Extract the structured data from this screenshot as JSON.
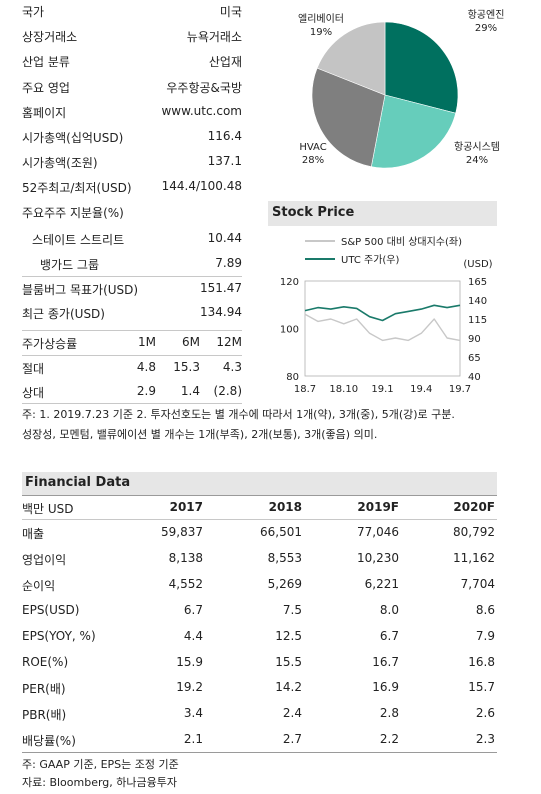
{
  "profile": {
    "rows": [
      {
        "label": "국가",
        "value": "미국"
      },
      {
        "label": "상장거래소",
        "value": "뉴욕거래소"
      },
      {
        "label": "산업 분류",
        "value": "산업재"
      },
      {
        "label": "주요 영업",
        "value": "우주항공&국방"
      },
      {
        "label": "홈페이지",
        "value": "www.utc.com"
      },
      {
        "label": "시가총액(십억USD)",
        "value": "116.4"
      },
      {
        "label": "시가총액(조원)",
        "value": "137.1"
      },
      {
        "label": "52주최고/최저(USD)",
        "value": "144.4/100.48"
      }
    ],
    "holders_title": "주요주주 지분율(%)",
    "holders": [
      {
        "label": "스테이트 스트리트",
        "value": "10.44"
      },
      {
        "label": "뱅가드 그룹",
        "value": "7.89"
      }
    ],
    "target_label": "블룸버그 목표가(USD)",
    "target_value": "151.47",
    "close_label": "최근 종가(USD)",
    "close_value": "134.94"
  },
  "returns": {
    "title": "주가상승률",
    "periods": [
      "1M",
      "6M",
      "12M"
    ],
    "rows": [
      {
        "label": "절대",
        "values": [
          "4.8",
          "15.3",
          "4.3"
        ]
      },
      {
        "label": "상대",
        "values": [
          "2.9",
          "1.4",
          "(2.8)"
        ]
      }
    ]
  },
  "notes_top": [
    "주: 1. 2019.7.23 기준 2. 투자선호도는 별 개수에 따라서 1개(약), 3개(중), 5개(강)로 구분.",
    "성장성, 모멘텀, 밸류에이션 별 개수는 1개(부족), 2개(보통), 3개(좋음) 의미."
  ],
  "pie": {
    "chart_data": {
      "type": "pie",
      "labels": [
        "항공엔진",
        "항공시스템",
        "HVAC",
        "엘리베이터"
      ],
      "values": [
        29,
        24,
        28,
        19
      ],
      "display": [
        "29%",
        "24%",
        "28%",
        "19%"
      ],
      "colors": [
        "#00705f",
        "#66cdbb",
        "#7f7f7f",
        "#c4c4c4"
      ]
    }
  },
  "stock": {
    "title": "Stock Price",
    "legend": [
      {
        "name": "S&P 500 대비 상대지수(좌)",
        "color": "#c8c8c8"
      },
      {
        "name": "UTC 주가(우)",
        "color": "#1a7a6a"
      }
    ],
    "right_unit": "(USD)",
    "left_ticks": [
      "120",
      "100",
      "80"
    ],
    "right_ticks": [
      "165",
      "140",
      "115",
      "90",
      "65",
      "40"
    ],
    "x_ticks": [
      "18.7",
      "18.10",
      "19.1",
      "19.4",
      "19.7"
    ],
    "chart_data": {
      "type": "line",
      "x": [
        "18.7",
        "18.8",
        "18.9",
        "18.10",
        "18.11",
        "18.12",
        "19.1",
        "19.2",
        "19.3",
        "19.4",
        "19.5",
        "19.6",
        "19.7"
      ],
      "series": [
        {
          "name": "S&P 500 대비 상대지수(좌)",
          "axis": "left",
          "values": [
            106,
            103,
            104,
            102,
            104,
            98,
            95,
            96,
            95,
            98,
            104,
            96,
            95
          ]
        },
        {
          "name": "UTC 주가(우)",
          "axis": "right",
          "values": [
            126,
            130,
            128,
            131,
            129,
            118,
            113,
            122,
            125,
            128,
            133,
            130,
            133
          ]
        }
      ],
      "ylim_left": [
        80,
        120
      ],
      "ylim_right": [
        40,
        165
      ]
    }
  },
  "financial": {
    "title": "Financial Data",
    "unit_label": "백만 USD",
    "years": [
      "2017",
      "2018",
      "2019F",
      "2020F"
    ],
    "rows": [
      {
        "label": "매출",
        "values": [
          "59,837",
          "66,501",
          "77,046",
          "80,792"
        ]
      },
      {
        "label": "영업이익",
        "values": [
          "8,138",
          "8,553",
          "10,230",
          "11,162"
        ]
      },
      {
        "label": "순이익",
        "values": [
          "4,552",
          "5,269",
          "6,221",
          "7,704"
        ]
      },
      {
        "label": "EPS(USD)",
        "values": [
          "6.7",
          "7.5",
          "8.0",
          "8.6"
        ]
      },
      {
        "label": "EPS(YOY, %)",
        "values": [
          "4.4",
          "12.5",
          "6.7",
          "7.9"
        ]
      },
      {
        "label": "ROE(%)",
        "values": [
          "15.9",
          "15.5",
          "16.7",
          "16.8"
        ]
      },
      {
        "label": "PER(배)",
        "values": [
          "19.2",
          "14.2",
          "16.9",
          "15.7"
        ]
      },
      {
        "label": "PBR(배)",
        "values": [
          "3.4",
          "2.4",
          "2.8",
          "2.6"
        ]
      },
      {
        "label": "배당률(%)",
        "values": [
          "2.1",
          "2.7",
          "2.2",
          "2.3"
        ]
      }
    ],
    "notes": [
      "주: GAAP 기준, EPS는 조정 기준",
      "자료: Bloomberg, 하나금융투자"
    ]
  }
}
